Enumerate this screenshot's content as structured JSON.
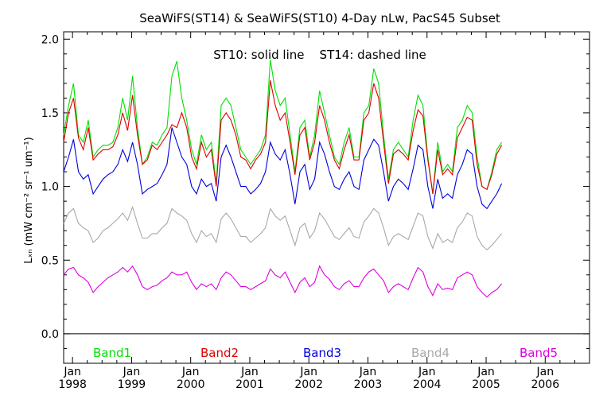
{
  "chart_data": {
    "type": "line",
    "title": "SeaWiFS(ST14) & SeaWiFS(ST10) 4-Day nLw, PacS45 Subset",
    "annotation": "ST10: solid line    ST14: dashed line",
    "ylabel": "Lₓₙ (mW cm⁻² sr⁻¹ um⁻¹)",
    "ylim": [
      -0.2,
      2.05
    ],
    "yticks": [
      0.0,
      0.5,
      1.0,
      1.5,
      2.0
    ],
    "ytick_labels": [
      "0.0",
      "0.5",
      "1.0",
      "1.5",
      "2.0"
    ],
    "xlim": [
      1997.85,
      2006.75
    ],
    "xticks": [
      1998,
      1999,
      2000,
      2001,
      2002,
      2003,
      2004,
      2005,
      2006
    ],
    "xtick_top_labels": [
      "Jan",
      "Jan",
      "Jan",
      "Jan",
      "Jan",
      "Jan",
      "Jan",
      "Jan",
      "Jan"
    ],
    "xtick_year_labels": [
      "1998",
      "1999",
      "2000",
      "2001",
      "2002",
      "2003",
      "2004",
      "2005",
      "2006"
    ],
    "zero_line": 0.0,
    "x_start": 1997.85,
    "x_step": 0.0833,
    "series": [
      {
        "name": "Band1",
        "color": "#00e000",
        "values": [
          1.35,
          1.55,
          1.7,
          1.35,
          1.3,
          1.45,
          1.2,
          1.25,
          1.28,
          1.28,
          1.3,
          1.4,
          1.6,
          1.45,
          1.75,
          1.4,
          1.15,
          1.2,
          1.3,
          1.28,
          1.35,
          1.4,
          1.75,
          1.85,
          1.6,
          1.45,
          1.25,
          1.15,
          1.35,
          1.25,
          1.3,
          1.02,
          1.55,
          1.6,
          1.55,
          1.4,
          1.25,
          1.2,
          1.15,
          1.2,
          1.25,
          1.35,
          1.86,
          1.65,
          1.55,
          1.6,
          1.35,
          1.1,
          1.4,
          1.45,
          1.2,
          1.35,
          1.65,
          1.5,
          1.35,
          1.2,
          1.15,
          1.3,
          1.4,
          1.2,
          1.2,
          1.5,
          1.55,
          1.8,
          1.7,
          1.35,
          1.05,
          1.25,
          1.3,
          1.25,
          1.2,
          1.45,
          1.62,
          1.55,
          1.2,
          0.95,
          1.3,
          1.1,
          1.15,
          1.1,
          1.4,
          1.45,
          1.55,
          1.5,
          1.2,
          1.0,
          0.98,
          1.1,
          1.25,
          1.3
        ]
      },
      {
        "name": "Band2",
        "color": "#e00000",
        "values": [
          1.3,
          1.5,
          1.6,
          1.33,
          1.25,
          1.4,
          1.18,
          1.22,
          1.25,
          1.25,
          1.27,
          1.35,
          1.5,
          1.38,
          1.62,
          1.35,
          1.15,
          1.18,
          1.28,
          1.25,
          1.3,
          1.35,
          1.42,
          1.4,
          1.5,
          1.4,
          1.2,
          1.12,
          1.3,
          1.2,
          1.25,
          1.0,
          1.45,
          1.5,
          1.45,
          1.35,
          1.2,
          1.18,
          1.12,
          1.18,
          1.22,
          1.3,
          1.72,
          1.55,
          1.45,
          1.5,
          1.3,
          1.08,
          1.35,
          1.4,
          1.18,
          1.3,
          1.55,
          1.45,
          1.3,
          1.18,
          1.12,
          1.25,
          1.35,
          1.18,
          1.18,
          1.45,
          1.5,
          1.7,
          1.6,
          1.3,
          1.02,
          1.22,
          1.25,
          1.22,
          1.18,
          1.38,
          1.52,
          1.48,
          1.18,
          0.95,
          1.25,
          1.08,
          1.12,
          1.08,
          1.33,
          1.4,
          1.47,
          1.45,
          1.15,
          1.0,
          0.98,
          1.08,
          1.22,
          1.28
        ]
      },
      {
        "name": "Band3",
        "color": "#0000dd",
        "values": [
          1.1,
          1.2,
          1.32,
          1.1,
          1.05,
          1.08,
          0.95,
          1.0,
          1.05,
          1.08,
          1.1,
          1.15,
          1.25,
          1.17,
          1.3,
          1.15,
          0.95,
          0.98,
          1.0,
          1.02,
          1.08,
          1.15,
          1.4,
          1.3,
          1.2,
          1.15,
          1.0,
          0.95,
          1.05,
          1.0,
          1.02,
          0.9,
          1.2,
          1.28,
          1.2,
          1.1,
          1.0,
          1.0,
          0.95,
          0.98,
          1.02,
          1.1,
          1.3,
          1.22,
          1.18,
          1.25,
          1.08,
          0.88,
          1.1,
          1.15,
          0.98,
          1.05,
          1.3,
          1.22,
          1.1,
          1.0,
          0.98,
          1.05,
          1.1,
          1.0,
          0.98,
          1.18,
          1.25,
          1.32,
          1.28,
          1.1,
          0.9,
          1.0,
          1.05,
          1.02,
          0.98,
          1.12,
          1.28,
          1.25,
          1.0,
          0.85,
          1.05,
          0.92,
          0.95,
          0.92,
          1.08,
          1.15,
          1.25,
          1.22,
          1.0,
          0.88,
          0.85,
          0.9,
          0.95,
          1.02
        ]
      },
      {
        "name": "Band4",
        "color": "#a8a8a8",
        "values": [
          0.75,
          0.82,
          0.85,
          0.75,
          0.72,
          0.7,
          0.62,
          0.65,
          0.7,
          0.72,
          0.75,
          0.78,
          0.82,
          0.77,
          0.86,
          0.75,
          0.65,
          0.65,
          0.68,
          0.68,
          0.72,
          0.75,
          0.85,
          0.82,
          0.8,
          0.77,
          0.68,
          0.62,
          0.7,
          0.66,
          0.68,
          0.62,
          0.78,
          0.82,
          0.78,
          0.72,
          0.66,
          0.66,
          0.62,
          0.65,
          0.68,
          0.72,
          0.85,
          0.8,
          0.77,
          0.8,
          0.7,
          0.6,
          0.72,
          0.75,
          0.65,
          0.7,
          0.82,
          0.78,
          0.72,
          0.66,
          0.64,
          0.68,
          0.72,
          0.66,
          0.65,
          0.76,
          0.8,
          0.85,
          0.82,
          0.72,
          0.6,
          0.66,
          0.68,
          0.66,
          0.64,
          0.73,
          0.82,
          0.8,
          0.66,
          0.58,
          0.68,
          0.62,
          0.64,
          0.62,
          0.72,
          0.76,
          0.82,
          0.8,
          0.66,
          0.6,
          0.57,
          0.6,
          0.64,
          0.68
        ]
      },
      {
        "name": "Band5",
        "color": "#e000e0",
        "values": [
          0.4,
          0.44,
          0.45,
          0.4,
          0.38,
          0.35,
          0.28,
          0.32,
          0.35,
          0.38,
          0.4,
          0.42,
          0.45,
          0.42,
          0.46,
          0.4,
          0.32,
          0.3,
          0.32,
          0.33,
          0.36,
          0.38,
          0.42,
          0.4,
          0.4,
          0.42,
          0.35,
          0.3,
          0.34,
          0.32,
          0.34,
          0.3,
          0.38,
          0.42,
          0.4,
          0.36,
          0.32,
          0.32,
          0.3,
          0.32,
          0.34,
          0.36,
          0.44,
          0.4,
          0.38,
          0.42,
          0.35,
          0.28,
          0.35,
          0.38,
          0.32,
          0.35,
          0.46,
          0.4,
          0.37,
          0.32,
          0.3,
          0.34,
          0.36,
          0.32,
          0.32,
          0.38,
          0.42,
          0.44,
          0.4,
          0.36,
          0.28,
          0.32,
          0.34,
          0.32,
          0.3,
          0.38,
          0.45,
          0.42,
          0.32,
          0.26,
          0.34,
          0.3,
          0.31,
          0.3,
          0.38,
          0.4,
          0.42,
          0.4,
          0.32,
          0.28,
          0.25,
          0.28,
          0.3,
          0.34
        ]
      }
    ]
  }
}
